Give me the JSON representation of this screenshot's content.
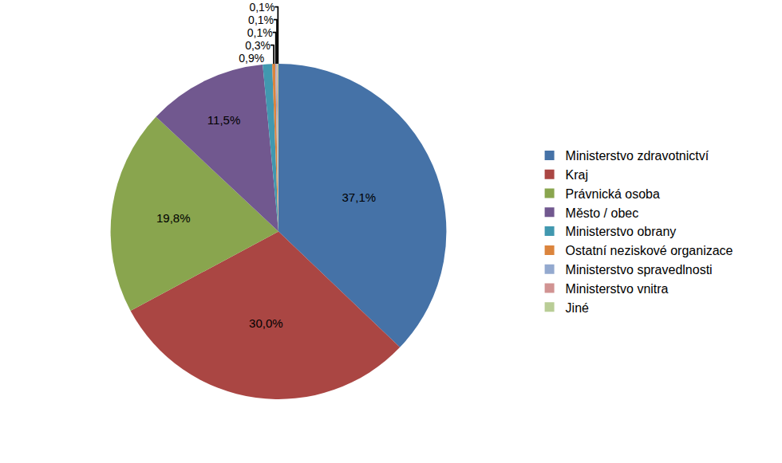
{
  "chart_data": {
    "type": "pie",
    "categories": [
      "Ministerstvo zdravotnictví",
      "Kraj",
      "Právnická osoba",
      "Město / obec",
      "Ministerstvo obrany",
      "Ostatní neziskové organizace",
      "Ministerstvo spravedlnosti",
      "Ministerstvo vnitra",
      "Jiné"
    ],
    "values": [
      37.1,
      30.0,
      19.8,
      11.5,
      0.9,
      0.3,
      0.1,
      0.1,
      0.1
    ],
    "value_labels": [
      "37,1%",
      "30,0%",
      "19,8%",
      "11,5%",
      "0,9%",
      "0,3%",
      "0,1%",
      "0,1%",
      "0,1%"
    ],
    "colors": [
      "#4572A7",
      "#AA4643",
      "#89A54E",
      "#71588F",
      "#4198AF",
      "#DB843D",
      "#93A9CF",
      "#D19392",
      "#B9CD96"
    ],
    "data_labels": true,
    "legend": "right"
  }
}
